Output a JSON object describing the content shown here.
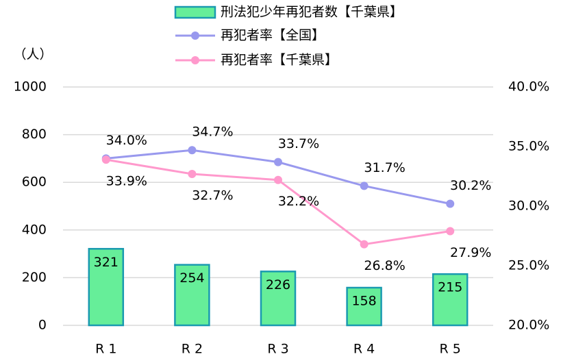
{
  "chart_data": {
    "type": "bar",
    "y_label": "（人）",
    "categories": [
      "R 1",
      "R 2",
      "R 3",
      "R 4",
      "R 5"
    ],
    "series": [
      {
        "name": "刑法犯少年再犯者数【千葉県】",
        "type": "bar",
        "color": "#66ee99",
        "edge_color": "#1a9ab0",
        "values": [
          321,
          254,
          226,
          158,
          215
        ]
      },
      {
        "name": "再犯者率【全国】",
        "type": "line",
        "axis": "y2",
        "color": "#9999ee",
        "values": [
          34.0,
          34.7,
          33.7,
          31.7,
          30.2
        ],
        "value_labels": [
          "34.0%",
          "34.7%",
          "33.7%",
          "31.7%",
          "30.2%"
        ]
      },
      {
        "name": "再犯者率【千葉県】",
        "type": "line",
        "axis": "y2",
        "color": "#ff99cc",
        "values": [
          33.9,
          32.7,
          32.2,
          26.8,
          27.9
        ],
        "value_labels": [
          "33.9%",
          "32.7%",
          "32.2%",
          "26.8%",
          "27.9%"
        ]
      }
    ],
    "ylim": [
      0,
      1000
    ],
    "yticks": [
      0,
      200,
      400,
      600,
      800,
      1000
    ],
    "y2lim": [
      20,
      40
    ],
    "y2ticks": [
      {
        "value": 20,
        "label": "20.0%"
      },
      {
        "value": 25,
        "label": "25.0%"
      },
      {
        "value": 30,
        "label": "30.0%"
      },
      {
        "value": 35,
        "label": "35.0%"
      },
      {
        "value": 40,
        "label": "40.0%"
      }
    ],
    "grid": true,
    "legend": "top"
  }
}
